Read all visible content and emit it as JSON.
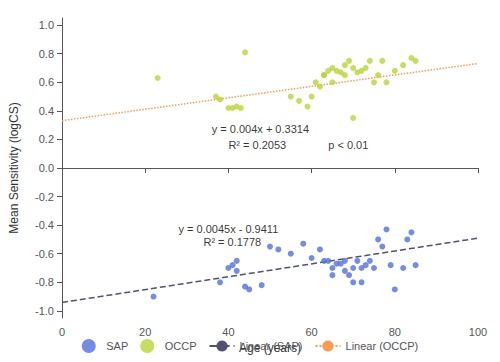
{
  "chart_data": {
    "type": "scatter",
    "xlabel": "Age (years)",
    "ylabel": "Mean Sensitivity (logCS)",
    "xlim": [
      0,
      100
    ],
    "ylim": [
      -1.05,
      1.05
    ],
    "xticks": [
      0,
      20,
      40,
      60,
      80,
      100
    ],
    "yticks": [
      {
        "value": -1.0,
        "label": "-1.0"
      },
      -0.8,
      -0.6,
      -0.4,
      -0.2,
      {
        "value": 0.0,
        "label": "0.0"
      },
      0.2,
      0.4,
      0.6,
      0.8,
      {
        "value": 1.0,
        "label": "1.0"
      }
    ],
    "grid": false,
    "legend": "bottom",
    "series": [
      {
        "name": "SAP",
        "type": "scatter",
        "marker": "circle",
        "x": [
          22,
          38,
          40,
          41,
          42,
          42,
          44,
          45,
          48,
          50,
          52,
          55,
          58,
          60,
          62,
          63,
          64,
          65,
          65,
          66,
          67,
          68,
          68,
          69,
          70,
          70,
          71,
          72,
          72,
          73,
          74,
          75,
          76,
          77,
          78,
          79,
          80,
          82,
          83,
          84,
          85
        ],
        "values": [
          -0.9,
          -0.8,
          -0.7,
          -0.68,
          -0.65,
          -0.72,
          -0.83,
          -0.85,
          -0.82,
          -0.55,
          -0.57,
          -0.6,
          -0.53,
          -0.63,
          -0.57,
          -0.65,
          -0.65,
          -0.7,
          -0.75,
          -0.67,
          -0.67,
          -0.65,
          -0.72,
          -0.75,
          -0.7,
          -0.8,
          -0.65,
          -0.7,
          -0.8,
          -0.68,
          -0.65,
          -0.7,
          -0.5,
          -0.55,
          -0.43,
          -0.68,
          -0.85,
          -0.7,
          -0.5,
          -0.45,
          -0.68
        ]
      },
      {
        "name": "OCCP",
        "type": "scatter",
        "marker": "circle",
        "x": [
          23,
          37,
          38,
          40,
          41,
          42,
          43,
          44,
          55,
          57,
          59,
          60,
          61,
          62,
          63,
          63,
          64,
          65,
          65,
          66,
          67,
          68,
          68,
          69,
          70,
          70,
          71,
          72,
          73,
          74,
          75,
          76,
          77,
          78,
          80,
          82,
          84,
          85
        ],
        "values": [
          0.63,
          0.5,
          0.48,
          0.42,
          0.42,
          0.43,
          0.42,
          0.81,
          0.5,
          0.47,
          0.43,
          0.5,
          0.6,
          0.57,
          0.65,
          0.65,
          0.68,
          0.7,
          0.6,
          0.68,
          0.67,
          0.72,
          0.65,
          0.75,
          0.7,
          0.35,
          0.67,
          0.68,
          0.7,
          0.75,
          0.6,
          0.65,
          0.75,
          0.6,
          0.68,
          0.72,
          0.77,
          0.75
        ]
      },
      {
        "name": "Linear (SAP)",
        "type": "line",
        "line_style": "dashed",
        "x": [
          0,
          100
        ],
        "values": [
          -0.9411,
          -0.4911
        ]
      },
      {
        "name": "Linear (OCCP)",
        "type": "line",
        "line_style": "dotted",
        "x": [
          0,
          100
        ],
        "values": [
          0.3314,
          0.7314
        ]
      }
    ],
    "annotations": [
      {
        "text": "y = 0.004x + 0.3314",
        "x": 36,
        "y": 0.27
      },
      {
        "text": "R² = 0.2053",
        "x": 40,
        "y": 0.16
      },
      {
        "text": "p < 0.01",
        "x": 64,
        "y": 0.16
      },
      {
        "text": "y = 0.0045x - 0.9411",
        "x": 28,
        "y": -0.43
      },
      {
        "text": "R² = 0.1778",
        "x": 34,
        "y": -0.52
      }
    ]
  }
}
